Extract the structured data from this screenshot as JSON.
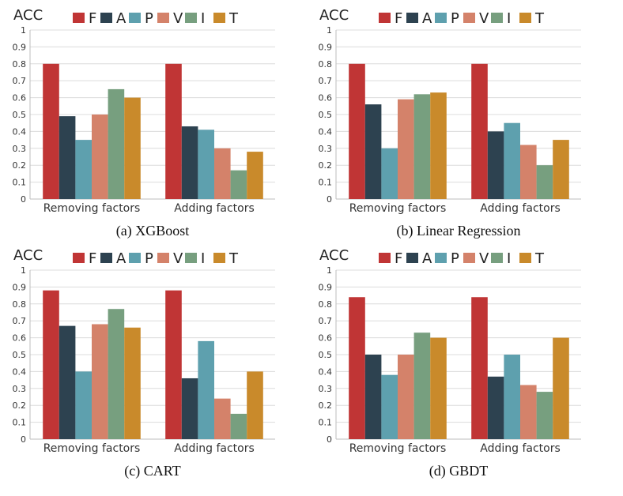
{
  "figure": {
    "legend": [
      {
        "key": "F",
        "color": "#c03535"
      },
      {
        "key": "A",
        "color": "#2d4250"
      },
      {
        "key": "P",
        "color": "#5ea0ae"
      },
      {
        "key": "V",
        "color": "#d4826a"
      },
      {
        "key": "I",
        "color": "#779f7f"
      },
      {
        "key": "T",
        "color": "#c98a2b"
      }
    ]
  },
  "chart_data": [
    {
      "type": "bar",
      "caption": "(a) XGBoost",
      "ylabel": "ACC",
      "ylim": [
        0,
        1
      ],
      "yticks": [
        "0",
        "0.1",
        "0.2",
        "0.3",
        "0.4",
        "0.5",
        "0.6",
        "0.7",
        "0.8",
        "0.9",
        "1"
      ],
      "categories": [
        "Removing factors",
        "Adding factors"
      ],
      "grid": true,
      "legend_position": "top",
      "series": [
        {
          "name": "F",
          "values": [
            0.8,
            0.8
          ]
        },
        {
          "name": "A",
          "values": [
            0.49,
            0.43
          ]
        },
        {
          "name": "P",
          "values": [
            0.35,
            0.41
          ]
        },
        {
          "name": "V",
          "values": [
            0.5,
            0.3
          ]
        },
        {
          "name": "I",
          "values": [
            0.65,
            0.17
          ]
        },
        {
          "name": "T",
          "values": [
            0.6,
            0.28
          ]
        }
      ]
    },
    {
      "type": "bar",
      "caption": "(b) Linear Regression",
      "ylabel": "ACC",
      "ylim": [
        0,
        1
      ],
      "yticks": [
        "0",
        "0.1",
        "0.2",
        "0.3",
        "0.4",
        "0.5",
        "0.6",
        "0.7",
        "0.8",
        "0.9",
        "1"
      ],
      "categories": [
        "Removing factors",
        "Adding factors"
      ],
      "grid": true,
      "legend_position": "top",
      "series": [
        {
          "name": "F",
          "values": [
            0.8,
            0.8
          ]
        },
        {
          "name": "A",
          "values": [
            0.56,
            0.4
          ]
        },
        {
          "name": "P",
          "values": [
            0.3,
            0.45
          ]
        },
        {
          "name": "V",
          "values": [
            0.59,
            0.32
          ]
        },
        {
          "name": "I",
          "values": [
            0.62,
            0.2
          ]
        },
        {
          "name": "T",
          "values": [
            0.63,
            0.35
          ]
        }
      ]
    },
    {
      "type": "bar",
      "caption": "(c) CART",
      "ylabel": "ACC",
      "ylim": [
        0,
        1
      ],
      "yticks": [
        "0",
        "0.1",
        "0.2",
        "0.3",
        "0.4",
        "0.5",
        "0.6",
        "0.7",
        "0.8",
        "0.9",
        "1"
      ],
      "categories": [
        "Removing factors",
        "Adding factors"
      ],
      "grid": true,
      "legend_position": "top",
      "series": [
        {
          "name": "F",
          "values": [
            0.88,
            0.88
          ]
        },
        {
          "name": "A",
          "values": [
            0.67,
            0.36
          ]
        },
        {
          "name": "P",
          "values": [
            0.4,
            0.58
          ]
        },
        {
          "name": "V",
          "values": [
            0.68,
            0.24
          ]
        },
        {
          "name": "I",
          "values": [
            0.77,
            0.15
          ]
        },
        {
          "name": "T",
          "values": [
            0.66,
            0.4
          ]
        }
      ]
    },
    {
      "type": "bar",
      "caption": "(d) GBDT",
      "ylabel": "ACC",
      "ylim": [
        0,
        1
      ],
      "yticks": [
        "0",
        "0.1",
        "0.2",
        "0.3",
        "0.4",
        "0.5",
        "0.6",
        "0.7",
        "0.8",
        "0.9",
        "1"
      ],
      "categories": [
        "Removing factors",
        "Adding factors"
      ],
      "grid": true,
      "legend_position": "top",
      "series": [
        {
          "name": "F",
          "values": [
            0.84,
            0.84
          ]
        },
        {
          "name": "A",
          "values": [
            0.5,
            0.37
          ]
        },
        {
          "name": "P",
          "values": [
            0.38,
            0.5
          ]
        },
        {
          "name": "V",
          "values": [
            0.5,
            0.32
          ]
        },
        {
          "name": "I",
          "values": [
            0.63,
            0.28
          ]
        },
        {
          "name": "T",
          "values": [
            0.6,
            0.6
          ]
        }
      ]
    }
  ]
}
